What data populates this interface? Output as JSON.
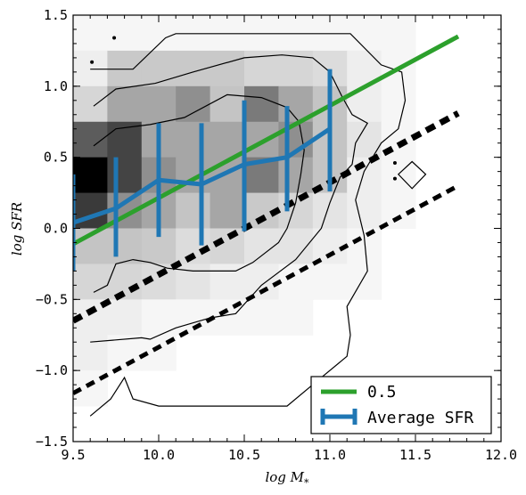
{
  "chart_data": {
    "type": "heatmap",
    "xlabel": "log  M",
    "xlabel_sub": "*",
    "ylabel": "log  SFR",
    "xlim": [
      9.5,
      12.0
    ],
    "ylim": [
      -1.5,
      1.5
    ],
    "x_ticks": [
      "9.5",
      "10.0",
      "10.5",
      "11.0",
      "11.5",
      "12.0"
    ],
    "x_tick_values": [
      9.5,
      10.0,
      10.5,
      11.0,
      11.5,
      12.0
    ],
    "y_ticks": [
      "1.5",
      "1.0",
      "0.5",
      "0.0",
      "−0.5",
      "−1.0",
      "−1.5"
    ],
    "y_tick_values": [
      1.5,
      1.0,
      0.5,
      0.0,
      -0.5,
      -1.0,
      -1.5
    ],
    "grid": false,
    "legend_position": "lower-right",
    "legend": [
      {
        "label": "0.5",
        "color": "#2ca02c",
        "kind": "line"
      },
      {
        "label": "Average SFR",
        "color": "#1f77b4",
        "kind": "errorbar"
      }
    ],
    "heatmap": {
      "x_bin_width": 0.2,
      "y_bin_width": 0.25,
      "cells": [
        {
          "x": 9.5,
          "y": 1.25,
          "shade": "#f6f6f6"
        },
        {
          "x": 9.7,
          "y": 1.25,
          "shade": "#f6f6f6"
        },
        {
          "x": 9.9,
          "y": 1.25,
          "shade": "#f6f6f6"
        },
        {
          "x": 10.1,
          "y": 1.25,
          "shade": "#f6f6f6"
        },
        {
          "x": 10.3,
          "y": 1.25,
          "shade": "#f6f6f6"
        },
        {
          "x": 10.5,
          "y": 1.25,
          "shade": "#f6f6f6"
        },
        {
          "x": 10.7,
          "y": 1.25,
          "shade": "#f6f6f6"
        },
        {
          "x": 10.9,
          "y": 1.25,
          "shade": "#f6f6f6"
        },
        {
          "x": 11.1,
          "y": 1.25,
          "shade": "#f6f6f6"
        },
        {
          "x": 11.3,
          "y": 1.25,
          "shade": "#f6f6f6"
        },
        {
          "x": 9.5,
          "y": 1.0,
          "shade": "#eeeeee"
        },
        {
          "x": 9.7,
          "y": 1.0,
          "shade": "#c9c9c9"
        },
        {
          "x": 9.9,
          "y": 1.0,
          "shade": "#c9c9c9"
        },
        {
          "x": 10.1,
          "y": 1.0,
          "shade": "#c9c9c9"
        },
        {
          "x": 10.3,
          "y": 1.0,
          "shade": "#c9c9c9"
        },
        {
          "x": 10.5,
          "y": 1.0,
          "shade": "#d6d6d6"
        },
        {
          "x": 10.7,
          "y": 1.0,
          "shade": "#d6d6d6"
        },
        {
          "x": 10.9,
          "y": 1.0,
          "shade": "#dcdcdc"
        },
        {
          "x": 11.1,
          "y": 1.0,
          "shade": "#eeeeee"
        },
        {
          "x": 11.3,
          "y": 1.0,
          "shade": "#f6f6f6"
        },
        {
          "x": 9.5,
          "y": 0.75,
          "shade": "#d6d6d6"
        },
        {
          "x": 9.7,
          "y": 0.75,
          "shade": "#a6a6a6"
        },
        {
          "x": 9.9,
          "y": 0.75,
          "shade": "#a6a6a6"
        },
        {
          "x": 10.1,
          "y": 0.75,
          "shade": "#8f8f8f"
        },
        {
          "x": 10.3,
          "y": 0.75,
          "shade": "#c4c4c4"
        },
        {
          "x": 10.5,
          "y": 0.75,
          "shade": "#7a7a7a"
        },
        {
          "x": 10.7,
          "y": 0.75,
          "shade": "#a6a6a6"
        },
        {
          "x": 10.9,
          "y": 0.75,
          "shade": "#c4c4c4"
        },
        {
          "x": 11.1,
          "y": 0.75,
          "shade": "#eeeeee"
        },
        {
          "x": 11.3,
          "y": 0.75,
          "shade": "#f6f6f6"
        },
        {
          "x": 9.5,
          "y": 0.5,
          "shade": "#5c5c5c"
        },
        {
          "x": 9.7,
          "y": 0.5,
          "shade": "#444444"
        },
        {
          "x": 9.9,
          "y": 0.5,
          "shade": "#a6a6a6"
        },
        {
          "x": 10.1,
          "y": 0.5,
          "shade": "#a6a6a6"
        },
        {
          "x": 10.3,
          "y": 0.5,
          "shade": "#a6a6a6"
        },
        {
          "x": 10.5,
          "y": 0.5,
          "shade": "#a6a6a6"
        },
        {
          "x": 10.7,
          "y": 0.5,
          "shade": "#8f8f8f"
        },
        {
          "x": 10.9,
          "y": 0.5,
          "shade": "#c4c4c4"
        },
        {
          "x": 11.1,
          "y": 0.5,
          "shade": "#e4e4e4"
        },
        {
          "x": 11.3,
          "y": 0.5,
          "shade": "#f6f6f6"
        },
        {
          "x": 9.5,
          "y": 0.25,
          "shade": "#000000"
        },
        {
          "x": 9.7,
          "y": 0.25,
          "shade": "#444444"
        },
        {
          "x": 9.9,
          "y": 0.25,
          "shade": "#8f8f8f"
        },
        {
          "x": 10.1,
          "y": 0.25,
          "shade": "#a6a6a6"
        },
        {
          "x": 10.3,
          "y": 0.25,
          "shade": "#a6a6a6"
        },
        {
          "x": 10.5,
          "y": 0.25,
          "shade": "#7a7a7a"
        },
        {
          "x": 10.7,
          "y": 0.25,
          "shade": "#a6a6a6"
        },
        {
          "x": 10.9,
          "y": 0.25,
          "shade": "#c4c4c4"
        },
        {
          "x": 11.1,
          "y": 0.25,
          "shade": "#eeeeee"
        },
        {
          "x": 11.3,
          "y": 0.25,
          "shade": "#f6f6f6"
        },
        {
          "x": 9.5,
          "y": 0.0,
          "shade": "#3a3a3a"
        },
        {
          "x": 9.7,
          "y": 0.0,
          "shade": "#8f8f8f"
        },
        {
          "x": 9.9,
          "y": 0.0,
          "shade": "#a6a6a6"
        },
        {
          "x": 10.1,
          "y": 0.0,
          "shade": "#c4c4c4"
        },
        {
          "x": 10.3,
          "y": 0.0,
          "shade": "#a6a6a6"
        },
        {
          "x": 10.5,
          "y": 0.0,
          "shade": "#c9c9c9"
        },
        {
          "x": 10.7,
          "y": 0.0,
          "shade": "#d6d6d6"
        },
        {
          "x": 10.9,
          "y": 0.0,
          "shade": "#e4e4e4"
        },
        {
          "x": 11.1,
          "y": 0.0,
          "shade": "#eeeeee"
        },
        {
          "x": 11.3,
          "y": 0.0,
          "shade": "#f6f6f6"
        },
        {
          "x": 9.5,
          "y": -0.25,
          "shade": "#c4c4c4"
        },
        {
          "x": 9.7,
          "y": -0.25,
          "shade": "#c4c4c4"
        },
        {
          "x": 9.9,
          "y": -0.25,
          "shade": "#c9c9c9"
        },
        {
          "x": 10.1,
          "y": -0.25,
          "shade": "#dcdcdc"
        },
        {
          "x": 10.3,
          "y": -0.25,
          "shade": "#d6d6d6"
        },
        {
          "x": 10.5,
          "y": -0.25,
          "shade": "#e4e4e4"
        },
        {
          "x": 10.7,
          "y": -0.25,
          "shade": "#e4e4e4"
        },
        {
          "x": 10.9,
          "y": -0.25,
          "shade": "#eeeeee"
        },
        {
          "x": 11.1,
          "y": -0.25,
          "shade": "#f6f6f6"
        },
        {
          "x": 9.5,
          "y": -0.5,
          "shade": "#d6d6d6"
        },
        {
          "x": 9.7,
          "y": -0.5,
          "shade": "#d6d6d6"
        },
        {
          "x": 9.9,
          "y": -0.5,
          "shade": "#dcdcdc"
        },
        {
          "x": 10.1,
          "y": -0.5,
          "shade": "#e4e4e4"
        },
        {
          "x": 10.3,
          "y": -0.5,
          "shade": "#eeeeee"
        },
        {
          "x": 10.5,
          "y": -0.5,
          "shade": "#eeeeee"
        },
        {
          "x": 10.7,
          "y": -0.5,
          "shade": "#f6f6f6"
        },
        {
          "x": 10.9,
          "y": -0.5,
          "shade": "#f6f6f6"
        },
        {
          "x": 11.1,
          "y": -0.5,
          "shade": "#f6f6f6"
        },
        {
          "x": 9.5,
          "y": -0.75,
          "shade": "#eeeeee"
        },
        {
          "x": 9.7,
          "y": -0.75,
          "shade": "#eeeeee"
        },
        {
          "x": 9.9,
          "y": -0.75,
          "shade": "#f6f6f6"
        },
        {
          "x": 10.1,
          "y": -0.75,
          "shade": "#f6f6f6"
        },
        {
          "x": 10.3,
          "y": -0.75,
          "shade": "#f6f6f6"
        },
        {
          "x": 10.5,
          "y": -0.75,
          "shade": "#f6f6f6"
        },
        {
          "x": 10.7,
          "y": -0.75,
          "shade": "#f6f6f6"
        },
        {
          "x": 9.5,
          "y": -1.0,
          "shade": "#eeeeee"
        },
        {
          "x": 9.7,
          "y": -1.0,
          "shade": "#f6f6f6"
        },
        {
          "x": 9.9,
          "y": -1.0,
          "shade": "#f6f6f6"
        },
        {
          "x": 9.5,
          "y": -1.25,
          "shade": "#f6f6f6"
        }
      ]
    },
    "contours": [
      {
        "name": "outer",
        "points": [
          [
            9.6,
            1.12
          ],
          [
            9.85,
            1.12
          ],
          [
            10.04,
            1.34
          ],
          [
            10.1,
            1.37
          ],
          [
            11.12,
            1.37
          ],
          [
            11.3,
            1.15
          ],
          [
            11.42,
            1.1
          ],
          [
            11.44,
            0.9
          ],
          [
            11.4,
            0.7
          ],
          [
            11.3,
            0.6
          ],
          [
            11.2,
            0.4
          ],
          [
            11.15,
            0.2
          ],
          [
            11.2,
            -0.05
          ],
          [
            11.22,
            -0.3
          ],
          [
            11.1,
            -0.55
          ],
          [
            11.12,
            -0.75
          ],
          [
            11.1,
            -0.9
          ],
          [
            10.95,
            -1.05
          ],
          [
            10.75,
            -1.25
          ],
          [
            10.25,
            -1.25
          ],
          [
            10.0,
            -1.25
          ],
          [
            9.85,
            -1.2
          ],
          [
            9.8,
            -1.05
          ],
          [
            9.72,
            -1.2
          ],
          [
            9.6,
            -1.32
          ]
        ]
      },
      {
        "name": "mid",
        "points": [
          [
            9.62,
            0.86
          ],
          [
            9.75,
            0.98
          ],
          [
            9.98,
            1.02
          ],
          [
            10.2,
            1.1
          ],
          [
            10.5,
            1.2
          ],
          [
            10.72,
            1.22
          ],
          [
            10.9,
            1.2
          ],
          [
            11.0,
            1.1
          ],
          [
            11.07,
            0.93
          ],
          [
            11.13,
            0.8
          ],
          [
            11.22,
            0.74
          ],
          [
            11.15,
            0.6
          ],
          [
            11.13,
            0.45
          ],
          [
            11.06,
            0.36
          ],
          [
            11.0,
            0.18
          ],
          [
            10.95,
            0.0
          ],
          [
            10.8,
            -0.22
          ],
          [
            10.6,
            -0.4
          ],
          [
            10.45,
            -0.6
          ],
          [
            10.3,
            -0.63
          ],
          [
            10.1,
            -0.7
          ],
          [
            9.95,
            -0.78
          ],
          [
            9.9,
            -0.77
          ],
          [
            9.6,
            -0.8
          ]
        ]
      },
      {
        "name": "inner",
        "points": [
          [
            9.62,
            0.58
          ],
          [
            9.75,
            0.7
          ],
          [
            9.95,
            0.73
          ],
          [
            10.15,
            0.78
          ],
          [
            10.4,
            0.94
          ],
          [
            10.6,
            0.92
          ],
          [
            10.75,
            0.85
          ],
          [
            10.82,
            0.75
          ],
          [
            10.85,
            0.55
          ],
          [
            10.83,
            0.38
          ],
          [
            10.8,
            0.18
          ],
          [
            10.75,
            0.0
          ],
          [
            10.7,
            -0.1
          ],
          [
            10.55,
            -0.24
          ],
          [
            10.45,
            -0.3
          ],
          [
            10.35,
            -0.3
          ],
          [
            10.2,
            -0.3
          ],
          [
            10.05,
            -0.28
          ],
          [
            9.95,
            -0.24
          ],
          [
            9.85,
            -0.22
          ],
          [
            9.75,
            -0.25
          ],
          [
            9.7,
            -0.4
          ],
          [
            9.62,
            -0.45
          ]
        ]
      }
    ],
    "green_line": {
      "x": [
        9.5,
        11.75
      ],
      "y": [
        -0.11,
        1.35
      ],
      "color": "#2ca02c"
    },
    "dashed_thick": {
      "x": [
        9.5,
        11.75
      ],
      "y": [
        -0.65,
        0.81
      ],
      "color": "#000000"
    },
    "dashed_thin": {
      "x": [
        9.5,
        11.75
      ],
      "y": [
        -1.16,
        0.3
      ],
      "color": "#000000"
    },
    "series": [
      {
        "name": "Average SFR",
        "color": "#1f77b4",
        "x": [
          9.5,
          9.75,
          10.0,
          10.25,
          10.5,
          10.75,
          11.0
        ],
        "y": [
          0.04,
          0.14,
          0.34,
          0.31,
          0.45,
          0.5,
          0.7
        ],
        "yerr_low": [
          -0.3,
          -0.2,
          -0.06,
          -0.12,
          -0.02,
          0.12,
          0.26
        ],
        "yerr_high": [
          0.38,
          0.5,
          0.74,
          0.74,
          0.9,
          0.86,
          1.12
        ]
      }
    ],
    "scatter_points": [
      {
        "x": 9.61,
        "y": 1.17
      },
      {
        "x": 9.74,
        "y": 1.34
      },
      {
        "x": 11.38,
        "y": 0.46
      },
      {
        "x": 11.38,
        "y": 0.35
      }
    ],
    "diamond_contour": [
      [
        11.4,
        0.38
      ],
      [
        11.48,
        0.47
      ],
      [
        11.56,
        0.38
      ],
      [
        11.48,
        0.28
      ]
    ]
  }
}
